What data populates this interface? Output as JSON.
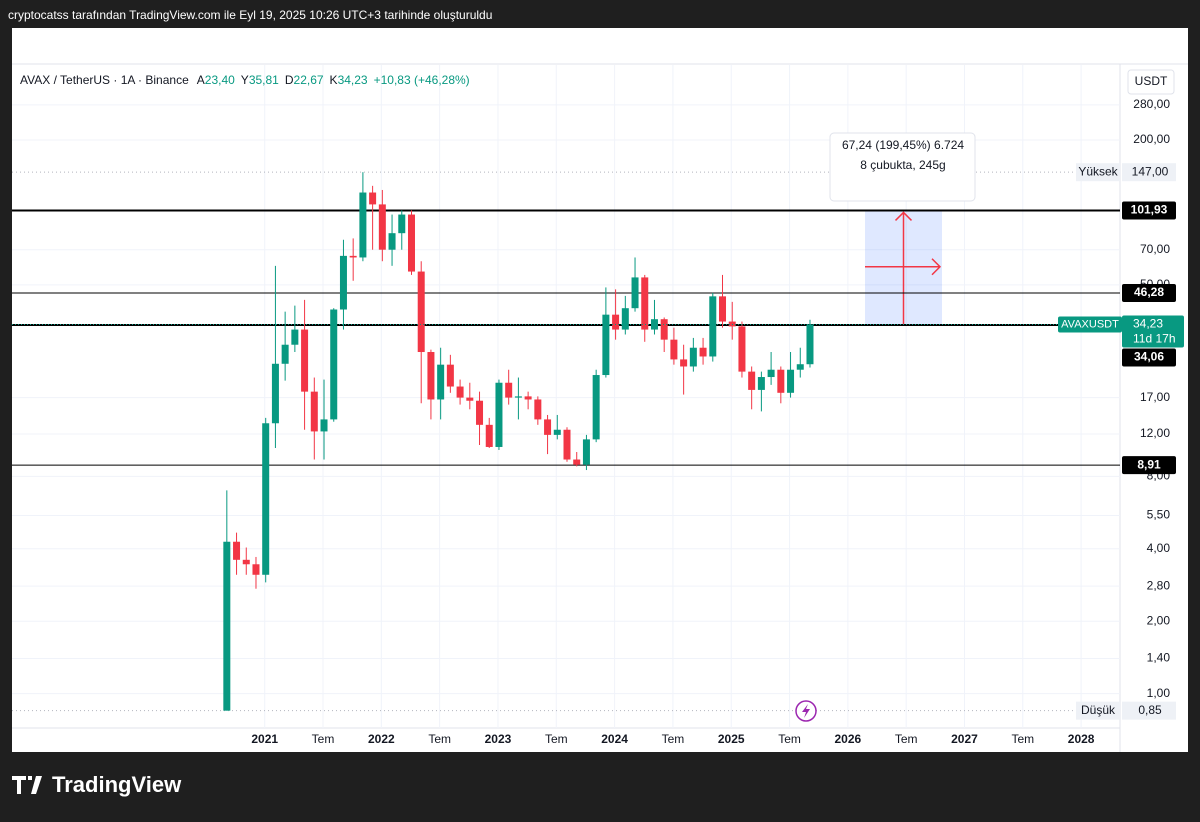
{
  "credit": "cryptocatss tarafından TradingView.com ile Eyl 19, 2025 10:26 UTC+3 tarihinde oluşturuldu",
  "brand": "TradingView",
  "chart_data": {
    "type": "candlestick",
    "title": "AVAX / TetherUS · 1A · Binance",
    "ohlc": [
      {
        "key": "A",
        "text": "23,40"
      },
      {
        "key": "Y",
        "text": "35,81"
      },
      {
        "key": "D",
        "text": "22,67"
      },
      {
        "key": "K",
        "text": "34,23"
      }
    ],
    "change": "+10,83 (+46,28%)",
    "currency": "USDT",
    "up_color": "#089981",
    "down_color": "#f23645",
    "log_scale": true,
    "grid": true,
    "x": [
      "2020-09",
      "2020-10",
      "2020-11",
      "2020-12",
      "2021-01",
      "2021-02",
      "2021-03",
      "2021-04",
      "2021-05",
      "2021-06",
      "2021-07",
      "2021-08",
      "2021-09",
      "2021-10",
      "2021-11",
      "2021-12",
      "2022-01",
      "2022-02",
      "2022-03",
      "2022-04",
      "2022-05",
      "2022-06",
      "2022-07",
      "2022-08",
      "2022-09",
      "2022-10",
      "2022-11",
      "2022-12",
      "2023-01",
      "2023-02",
      "2023-03",
      "2023-04",
      "2023-05",
      "2023-06",
      "2023-07",
      "2023-08",
      "2023-09",
      "2023-10",
      "2023-11",
      "2023-12",
      "2024-01",
      "2024-02",
      "2024-03",
      "2024-04",
      "2024-05",
      "2024-06",
      "2024-07",
      "2024-08",
      "2024-09",
      "2024-10",
      "2024-11",
      "2024-12",
      "2025-01",
      "2025-02",
      "2025-03",
      "2025-04",
      "2025-05",
      "2025-06",
      "2025-07",
      "2025-08",
      "2025-09"
    ],
    "open": [
      0.85,
      4.28,
      3.6,
      3.45,
      3.12,
      13.3,
      23.5,
      28.2,
      32.6,
      18,
      12.3,
      13.8,
      39.5,
      66,
      65,
      121,
      108,
      70,
      82,
      98,
      56.8,
      26.3,
      16.7,
      23.3,
      18.9,
      17,
      16.5,
      13.1,
      10.6,
      19.6,
      17,
      17.2,
      16.7,
      13.8,
      11.9,
      12.5,
      9.4,
      8.95,
      11.4,
      21.1,
      37.6,
      32.6,
      40,
      53.7,
      32.6,
      36,
      29.6,
      24.5,
      22.9,
      27.4,
      25.2,
      44.8,
      35.2,
      33.6,
      21.8,
      18.3,
      20.7,
      22.2,
      17.8,
      22.2,
      23.4
    ],
    "high": [
      7,
      4.67,
      4.05,
      3.7,
      14,
      60,
      38.7,
      41,
      43.3,
      20.6,
      20.2,
      40,
      77,
      78,
      147,
      129,
      124,
      98,
      102,
      102,
      62.7,
      26.9,
      27.4,
      25.6,
      20.2,
      19.6,
      18,
      14,
      20.2,
      22.2,
      20.6,
      18,
      17.2,
      14.4,
      14.4,
      12.8,
      10.1,
      11.9,
      22.2,
      48.8,
      47.9,
      45,
      65,
      55,
      43.3,
      36.6,
      33.2,
      28.2,
      30.1,
      30.1,
      46.3,
      55,
      42.5,
      35.2,
      22.9,
      21.8,
      26.3,
      22.9,
      26.3,
      27.4,
      35.81
    ],
    "low": [
      0.85,
      3.12,
      3.12,
      2.73,
      2.9,
      10.5,
      20,
      26.3,
      12.5,
      9.4,
      9.4,
      13.5,
      32.6,
      52,
      62.7,
      70,
      62.7,
      60,
      70,
      55,
      16.1,
      13.8,
      13.8,
      17.8,
      15.9,
      15.2,
      10.8,
      10.5,
      10.3,
      15.9,
      13.8,
      15.2,
      13.1,
      9.9,
      11.4,
      9.2,
      8.8,
      8.5,
      11.1,
      20.6,
      29.6,
      31.1,
      38.7,
      29,
      31.1,
      26.3,
      23.3,
      17.5,
      21.8,
      23.3,
      24,
      33.2,
      29.6,
      20.6,
      15.2,
      14.9,
      19.2,
      16.1,
      17,
      20.6,
      22.67
    ],
    "close": [
      4.28,
      3.6,
      3.45,
      3.12,
      13.3,
      23.5,
      28.2,
      32.6,
      18,
      12.3,
      13.8,
      39.5,
      66,
      65,
      121,
      108,
      70,
      82,
      98,
      56.8,
      26.3,
      16.7,
      23.3,
      18.9,
      17,
      16.5,
      13.1,
      10.6,
      19.6,
      17,
      17.2,
      16.7,
      13.8,
      11.9,
      12.5,
      9.4,
      8.95,
      11.4,
      21.1,
      37.6,
      32.6,
      40,
      53.7,
      32.6,
      36,
      29.6,
      24.5,
      22.9,
      27.4,
      25.2,
      44.8,
      35.2,
      33.6,
      21.8,
      18.3,
      20.7,
      22.2,
      17.8,
      22.2,
      23.4,
      34.23
    ],
    "xlim": [
      "2018-11",
      "2028-05"
    ],
    "xticks": [
      {
        "value": "2021-01",
        "label": "2021"
      },
      {
        "value": "2021-07",
        "label": "Tem"
      },
      {
        "value": "2022-01",
        "label": "2022"
      },
      {
        "value": "2022-07",
        "label": "Tem"
      },
      {
        "value": "2023-01",
        "label": "2023"
      },
      {
        "value": "2023-07",
        "label": "Tem"
      },
      {
        "value": "2024-01",
        "label": "2024"
      },
      {
        "value": "2024-07",
        "label": "Tem"
      },
      {
        "value": "2025-01",
        "label": "2025"
      },
      {
        "value": "2025-07",
        "label": "Tem"
      },
      {
        "value": "2026-01",
        "label": "2026"
      },
      {
        "value": "2026-07",
        "label": "Tem"
      },
      {
        "value": "2027-01",
        "label": "2027"
      },
      {
        "value": "2027-07",
        "label": "Tem"
      },
      {
        "value": "2028-01",
        "label": "2028"
      }
    ],
    "ylim": [
      0.72,
      410
    ],
    "yticks": [
      {
        "value": 280,
        "label": "280,00"
      },
      {
        "value": 200,
        "label": "200,00"
      },
      {
        "value": 70,
        "label": "70,00"
      },
      {
        "value": 50,
        "label": "50,00"
      },
      {
        "value": 17,
        "label": "17,00"
      },
      {
        "value": 12,
        "label": "12,00"
      },
      {
        "value": 8,
        "label": "8,00"
      },
      {
        "value": 5.5,
        "label": "5,50"
      },
      {
        "value": 4,
        "label": "4,00"
      },
      {
        "value": 2.8,
        "label": "2,80"
      },
      {
        "value": 2,
        "label": "2,00"
      },
      {
        "value": 1.4,
        "label": "1,40"
      },
      {
        "value": 1,
        "label": "1,00"
      }
    ],
    "levels": [
      {
        "value": 101.93,
        "label": "101,93",
        "width": 2
      },
      {
        "value": 46.28,
        "label": "46,28",
        "width": 1
      },
      {
        "value": 34.06,
        "label": "34,06",
        "width": 2
      },
      {
        "value": 8.91,
        "label": "8,91",
        "width": 1
      }
    ],
    "extremes": [
      {
        "name": "Yüksek",
        "value": 147,
        "label": "147,00"
      },
      {
        "name": "Düşük",
        "value": 0.85,
        "label": "0,85"
      }
    ],
    "last_price": {
      "symbol": "AVAXUSDT",
      "value": 34.23,
      "label": "34,23",
      "countdown": "11d 17h"
    },
    "measure": {
      "text": "67,24 (199,45%) 6.724",
      "bars_text": "8 çubukta, 245g"
    }
  }
}
